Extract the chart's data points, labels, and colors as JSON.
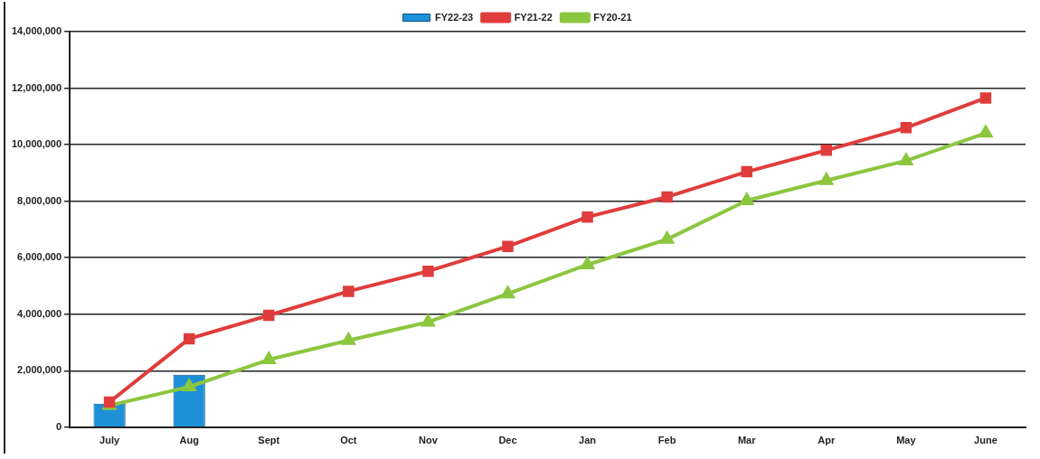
{
  "chart_data": {
    "type": "bar",
    "categories": [
      "July",
      "Aug",
      "Sept",
      "Oct",
      "Nov",
      "Dec",
      "Jan",
      "Feb",
      "Mar",
      "Apr",
      "May",
      "June"
    ],
    "series": [
      {
        "name": "FY22-23",
        "color": "#1e90d8",
        "values": [
          830000,
          1860000,
          null,
          null,
          null,
          null,
          null,
          null,
          null,
          null,
          null,
          null
        ]
      },
      {
        "name": "FY21-22",
        "type": "line",
        "color": "#e03c3c",
        "marker": "square",
        "values": [
          890000,
          3130000,
          3960000,
          4810000,
          5520000,
          6400000,
          7440000,
          8150000,
          9040000,
          9800000,
          10600000,
          11650000
        ]
      },
      {
        "name": "FY20-21",
        "type": "line",
        "color": "#8cc63f",
        "marker": "triangle",
        "values": [
          770000,
          1430000,
          2390000,
          3070000,
          3720000,
          4720000,
          5750000,
          6650000,
          8020000,
          8730000,
          9430000,
          10410000
        ]
      }
    ],
    "ylim": [
      0,
      14000000
    ],
    "yticks": [
      0,
      {
        "value": 2000000,
        "label": "2,000,000"
      },
      {
        "value": 4000000,
        "label": "4,000,000"
      },
      {
        "value": 6000000,
        "label": "6,000,000"
      },
      {
        "value": 8000000,
        "label": "8,000,000"
      },
      {
        "value": 10000000,
        "label": "10,000,000"
      },
      {
        "value": 12000000,
        "label": "12,000,000"
      },
      {
        "value": 14000000,
        "label": "14,000,000"
      }
    ],
    "grid": "y",
    "legend": "top"
  }
}
